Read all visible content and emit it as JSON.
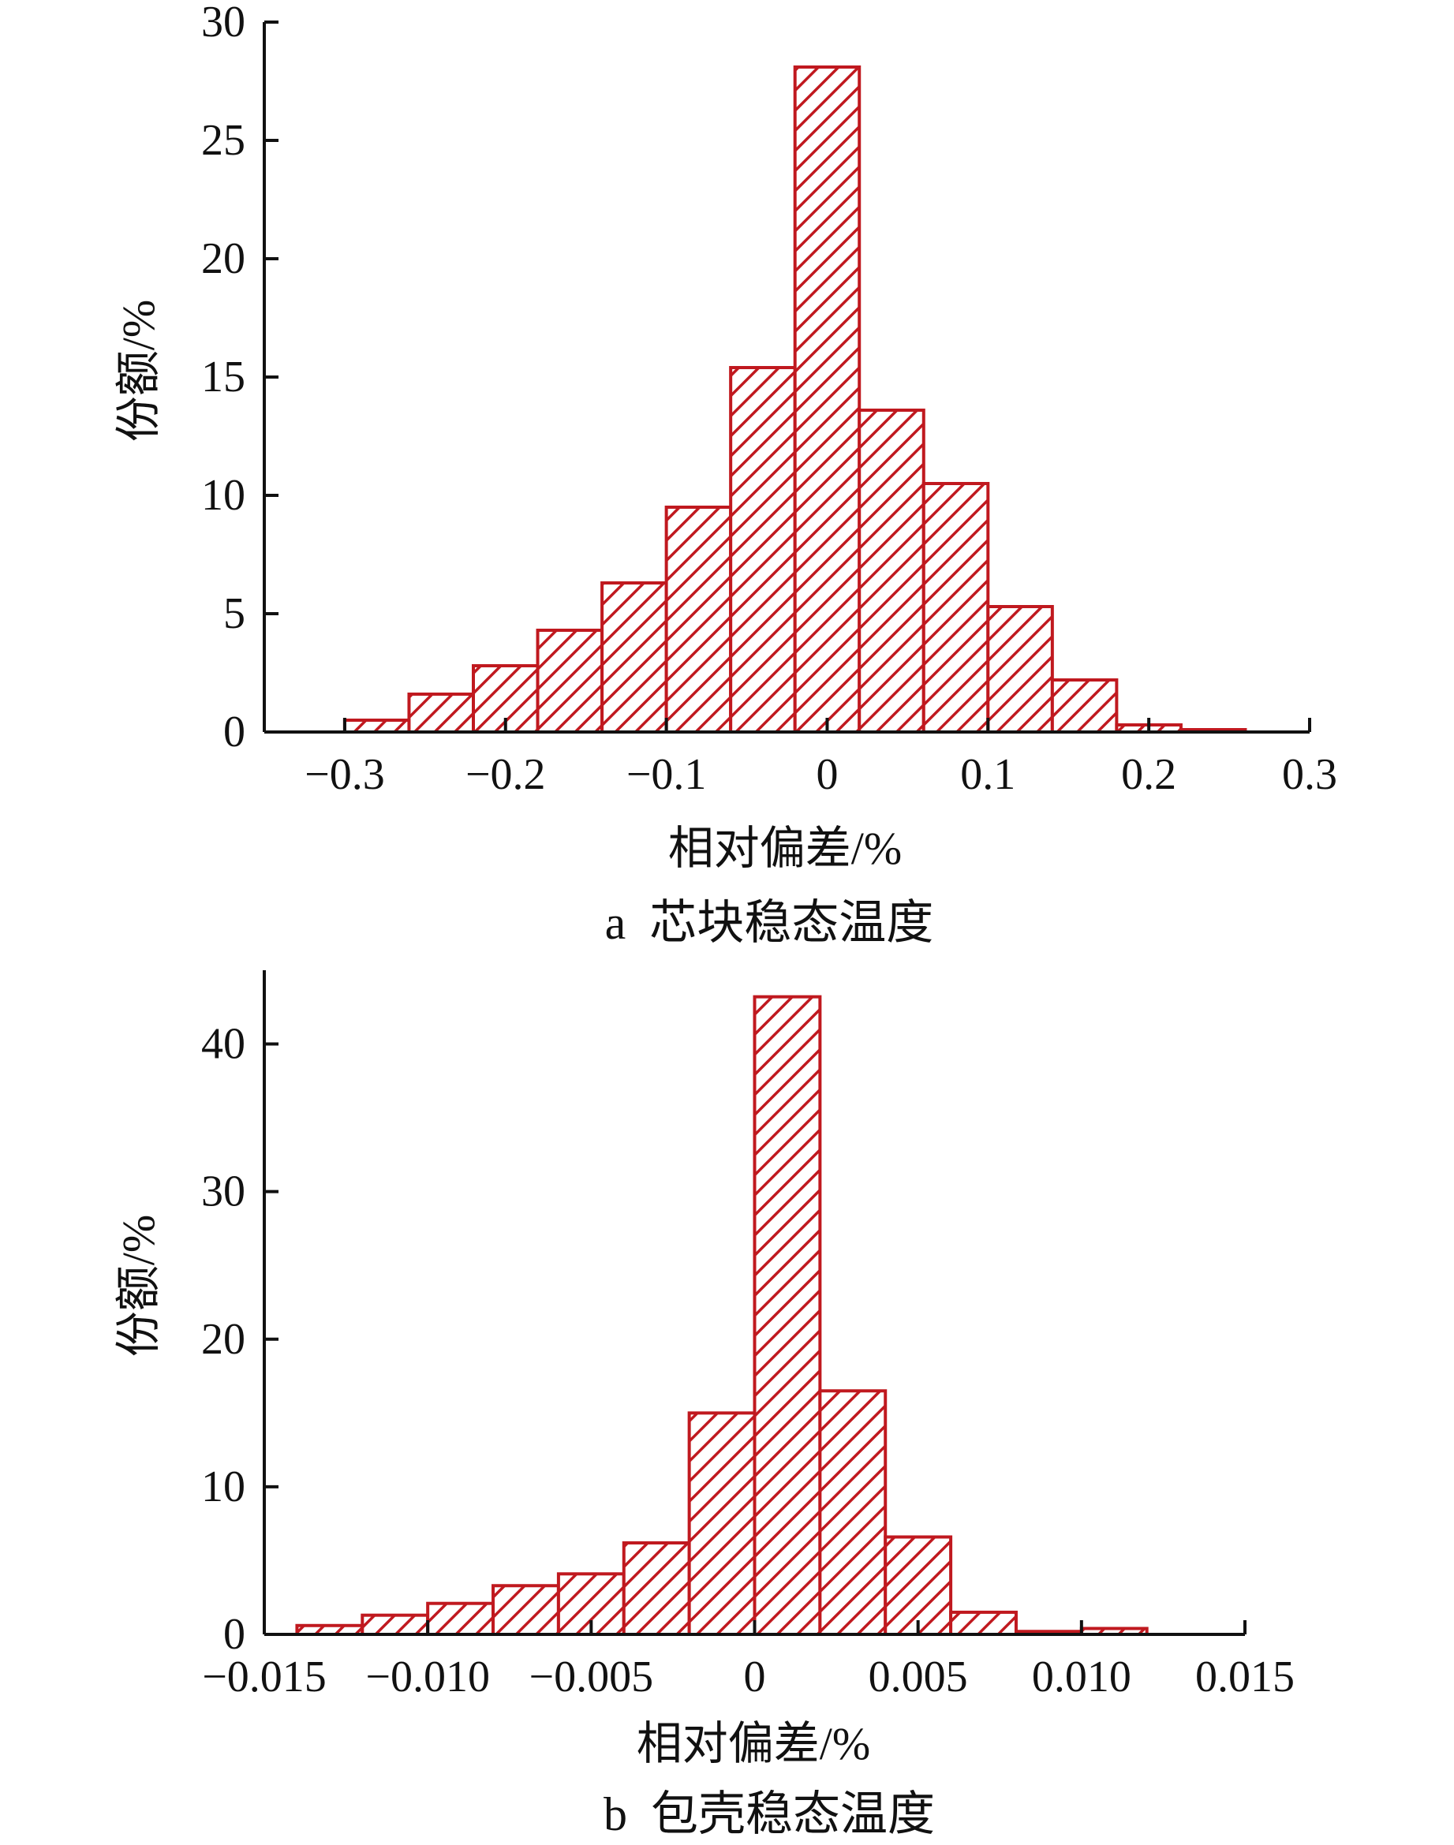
{
  "chart_data": [
    {
      "type": "bar",
      "caption": "a  芯块稳态温度",
      "xlabel": "相对偏差/%",
      "ylabel": "份额/%",
      "xlim": [
        -0.35,
        0.3
      ],
      "ylim": [
        0,
        30
      ],
      "xticks": [
        -0.3,
        -0.2,
        -0.1,
        0,
        0.1,
        0.2,
        0.3
      ],
      "xtick_labels": [
        "−0.3",
        "−0.2",
        "−0.1",
        "0",
        "0.1",
        "0.2",
        "0.3"
      ],
      "yticks": [
        0,
        5,
        10,
        15,
        20,
        25,
        30
      ],
      "ytick_labels": [
        "0",
        "5",
        "10",
        "15",
        "20",
        "25",
        "30"
      ],
      "bins": [
        {
          "x0": -0.3,
          "x1": -0.26,
          "value": 0.5
        },
        {
          "x0": -0.26,
          "x1": -0.22,
          "value": 1.6
        },
        {
          "x0": -0.22,
          "x1": -0.18,
          "value": 2.8
        },
        {
          "x0": -0.18,
          "x1": -0.14,
          "value": 4.3
        },
        {
          "x0": -0.14,
          "x1": -0.1,
          "value": 6.3
        },
        {
          "x0": -0.1,
          "x1": -0.06,
          "value": 9.5
        },
        {
          "x0": -0.06,
          "x1": -0.02,
          "value": 15.4
        },
        {
          "x0": -0.02,
          "x1": 0.02,
          "value": 28.1
        },
        {
          "x0": 0.02,
          "x1": 0.06,
          "value": 13.6
        },
        {
          "x0": 0.06,
          "x1": 0.1,
          "value": 10.5
        },
        {
          "x0": 0.1,
          "x1": 0.14,
          "value": 5.3
        },
        {
          "x0": 0.14,
          "x1": 0.18,
          "value": 2.2
        },
        {
          "x0": 0.18,
          "x1": 0.22,
          "value": 0.3
        },
        {
          "x0": 0.22,
          "x1": 0.26,
          "value": 0.1
        }
      ],
      "bar_color": "#c0191f",
      "grid": false
    },
    {
      "type": "bar",
      "caption": "b  包壳稳态温度",
      "xlabel": "相对偏差/%",
      "ylabel": "份额/%",
      "xlim": [
        -0.015,
        0.015
      ],
      "ylim": [
        0,
        45
      ],
      "xticks": [
        -0.015,
        -0.01,
        -0.005,
        0,
        0.005,
        0.01,
        0.015
      ],
      "xtick_labels": [
        "−0.015",
        "−0.010",
        "−0.005",
        "0",
        "0.005",
        "0.010",
        "0.015"
      ],
      "yticks": [
        0,
        10,
        20,
        30,
        40
      ],
      "ytick_labels": [
        "0",
        "10",
        "20",
        "30",
        "40"
      ],
      "bins": [
        {
          "x0": -0.014,
          "x1": -0.012,
          "value": 0.6
        },
        {
          "x0": -0.012,
          "x1": -0.01,
          "value": 1.3
        },
        {
          "x0": -0.01,
          "x1": -0.008,
          "value": 2.1
        },
        {
          "x0": -0.008,
          "x1": -0.006,
          "value": 3.3
        },
        {
          "x0": -0.006,
          "x1": -0.004,
          "value": 4.1
        },
        {
          "x0": -0.004,
          "x1": -0.002,
          "value": 6.2
        },
        {
          "x0": -0.002,
          "x1": 0,
          "value": 15.0
        },
        {
          "x0": 0,
          "x1": 0.002,
          "value": 43.2
        },
        {
          "x0": 0.002,
          "x1": 0.004,
          "value": 16.5
        },
        {
          "x0": 0.004,
          "x1": 0.006,
          "value": 6.6
        },
        {
          "x0": 0.006,
          "x1": 0.008,
          "value": 1.5
        },
        {
          "x0": 0.008,
          "x1": 0.01,
          "value": 0.2
        },
        {
          "x0": 0.01,
          "x1": 0.012,
          "value": 0.4
        }
      ],
      "bar_color": "#c0191f",
      "grid": false
    }
  ]
}
